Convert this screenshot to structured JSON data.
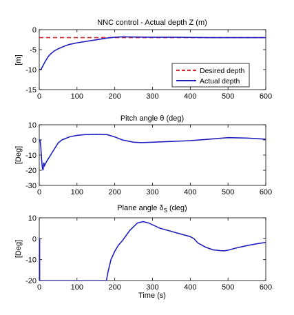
{
  "chart_data": [
    {
      "type": "line",
      "title": "NNC control - Actual depth Z (m)",
      "xlabel": "",
      "ylabel": "[m]",
      "xlim": [
        0,
        600
      ],
      "ylim": [
        -15,
        0
      ],
      "xticks": [
        0,
        100,
        200,
        300,
        400,
        500,
        600
      ],
      "yticks": [
        -15,
        -10,
        -5,
        0
      ],
      "grid": false,
      "legend_position": "lower-right",
      "series": [
        {
          "name": "Desired depth",
          "color": "#d62728",
          "style": "dashed",
          "x": [
            0,
            600
          ],
          "y": [
            -2,
            -2
          ]
        },
        {
          "name": "Actual depth",
          "color": "#1f1fbf",
          "style": "solid",
          "x": [
            0,
            2,
            5,
            10,
            15,
            20,
            25,
            30,
            40,
            50,
            60,
            70,
            80,
            90,
            100,
            120,
            140,
            160,
            180,
            200,
            220,
            250,
            300,
            350,
            400,
            450,
            500,
            550,
            600
          ],
          "y": [
            -10,
            -10,
            -9.9,
            -9,
            -8.1,
            -7.3,
            -6.6,
            -6.1,
            -5.3,
            -4.8,
            -4.4,
            -4.0,
            -3.7,
            -3.5,
            -3.3,
            -3.0,
            -2.7,
            -2.4,
            -2.1,
            -1.9,
            -1.8,
            -1.85,
            -1.9,
            -1.9,
            -1.95,
            -2.0,
            -2.0,
            -2.0,
            -2.0
          ]
        }
      ]
    },
    {
      "type": "line",
      "title": "Pitch angle θ (deg)",
      "xlabel": "",
      "ylabel": "[Deg]",
      "xlim": [
        0,
        600
      ],
      "ylim": [
        -30,
        10
      ],
      "xticks": [
        0,
        100,
        200,
        300,
        400,
        500,
        600
      ],
      "yticks": [
        -30,
        -20,
        -10,
        0,
        10
      ],
      "grid": false,
      "series": [
        {
          "name": "",
          "color": "#1f1fbf",
          "style": "solid",
          "x": [
            0,
            2,
            4,
            6,
            8,
            10,
            12,
            14,
            16,
            20,
            25,
            30,
            40,
            50,
            60,
            80,
            100,
            120,
            150,
            180,
            200,
            220,
            250,
            270,
            300,
            350,
            400,
            450,
            500,
            550,
            600
          ],
          "y": [
            0,
            0,
            -4,
            -12,
            -18,
            -20,
            -15,
            -17,
            -16,
            -14,
            -12,
            -10,
            -6,
            -2,
            0,
            2,
            3,
            3.5,
            3.7,
            3.5,
            2,
            0,
            -1.5,
            -1.8,
            -1.5,
            -1,
            -0.5,
            0.5,
            1.5,
            1.2,
            0.5
          ]
        }
      ]
    },
    {
      "type": "line",
      "title": "Plane angle δS (deg)",
      "title_base": "Plane angle δ",
      "title_sub": "S",
      "title_suffix": " (deg)",
      "xlabel": "Time (s)",
      "ylabel": "[Deg]",
      "xlim": [
        0,
        600
      ],
      "ylim": [
        -20,
        10
      ],
      "xticks": [
        0,
        100,
        200,
        300,
        400,
        500,
        600
      ],
      "yticks": [
        -20,
        -10,
        0,
        10
      ],
      "grid": false,
      "series": [
        {
          "name": "",
          "color": "#1f1fbf",
          "style": "solid",
          "x": [
            0,
            0.1,
            1,
            1.1,
            2,
            178,
            182,
            190,
            200,
            210,
            220,
            240,
            260,
            275,
            290,
            320,
            360,
            400,
            410,
            420,
            440,
            460,
            480,
            490,
            500,
            520,
            550,
            580,
            600
          ],
          "y": [
            0,
            0,
            0,
            -20,
            -20,
            -20,
            -16,
            -10,
            -6,
            -3,
            -1,
            4,
            7.5,
            8.2,
            7.5,
            5,
            3,
            1,
            0,
            -2,
            -4,
            -5.3,
            -5.7,
            -5.8,
            -5.5,
            -4.5,
            -3.3,
            -2.3,
            -1.8
          ]
        }
      ]
    }
  ]
}
